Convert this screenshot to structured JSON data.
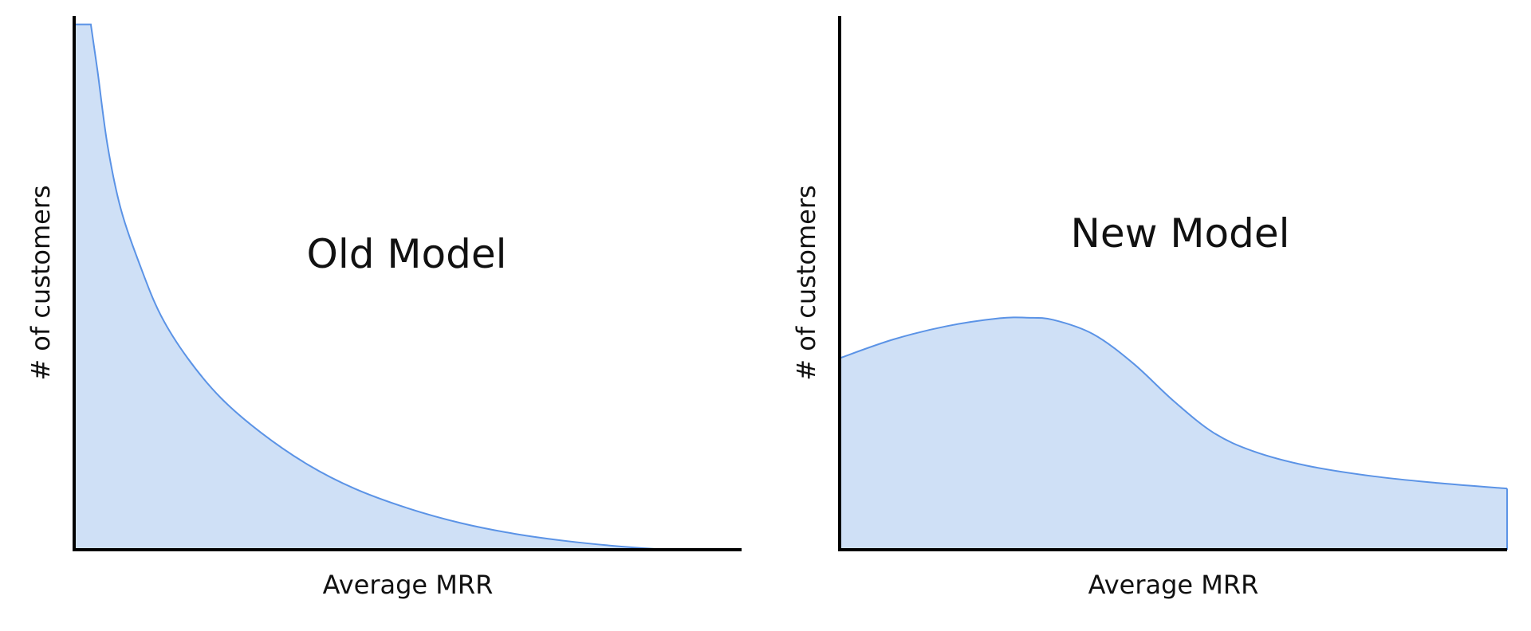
{
  "chart_data": [
    {
      "type": "area",
      "title": "Old Model",
      "xlabel": "Average MRR",
      "ylabel": "# of customers",
      "xlim": [
        0,
        100
      ],
      "ylim": [
        0,
        100
      ],
      "grid": false,
      "fill_color": "#cfe0f6",
      "line_color": "#5b93e6",
      "x": [
        0,
        2.5,
        3.5,
        5,
        7,
        10,
        13,
        17,
        22,
        28,
        35,
        42,
        50,
        58,
        66,
        74,
        82,
        88,
        92
      ],
      "y": [
        98.7,
        98.7,
        90,
        76,
        64,
        53,
        44,
        36,
        28.5,
        22,
        16,
        11.5,
        7.8,
        5,
        3,
        1.6,
        0.6,
        0.1,
        0
      ]
    },
    {
      "type": "area",
      "title": "New Model",
      "xlabel": "Average MRR",
      "ylabel": "# of customers",
      "xlim": [
        0,
        100
      ],
      "ylim": [
        0,
        100
      ],
      "grid": false,
      "fill_color": "#cfe0f6",
      "line_color": "#5b93e6",
      "x": [
        0,
        8,
        16,
        24,
        28,
        32,
        38,
        44,
        50,
        56,
        62,
        70,
        80,
        90,
        100
      ],
      "y": [
        36,
        39.5,
        42,
        43.5,
        43.6,
        43.2,
        40.5,
        35,
        28,
        22,
        18.5,
        15.8,
        13.8,
        12.5,
        11.5
      ]
    }
  ]
}
